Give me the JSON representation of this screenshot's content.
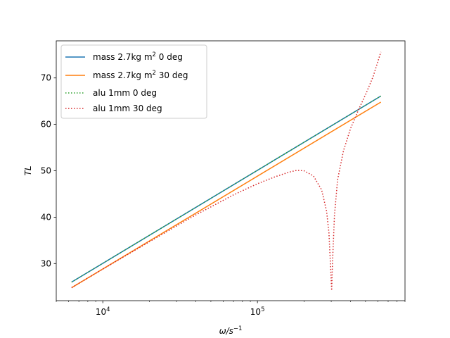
{
  "chart_data": {
    "type": "line",
    "title": "",
    "xlabel": {
      "base": "ω/s",
      "sup": "−1"
    },
    "ylabel": "TL",
    "x_scale": "log",
    "xlim": [
      5000,
      900000
    ],
    "ylim": [
      22,
      78
    ],
    "x_ticks": [
      {
        "value": 10000,
        "base": "10",
        "exp": "4"
      },
      {
        "value": 100000,
        "base": "10",
        "exp": "5"
      }
    ],
    "y_ticks": [
      30,
      40,
      50,
      60,
      70
    ],
    "grid": false,
    "legend_position": "top-left",
    "series": [
      {
        "name": {
          "pre": "mass 2.7kg m",
          "sup": "2",
          "post": " 0 deg"
        },
        "color": "#1f77b4",
        "style": "solid",
        "x": [
          6283,
          628300
        ],
        "y": [
          26.0,
          66.1
        ]
      },
      {
        "name": {
          "pre": "mass 2.7kg m",
          "sup": "2",
          "post": " 30 deg"
        },
        "color": "#ff7f0e",
        "style": "solid",
        "x": [
          6283,
          628300
        ],
        "y": [
          24.8,
          64.8
        ]
      },
      {
        "name": {
          "pre": "alu 1mm  0 deg",
          "sup": "",
          "post": ""
        },
        "color": "#2ca02c",
        "style": "dotted",
        "x": [
          6283,
          628300
        ],
        "y": [
          26.0,
          66.1
        ]
      },
      {
        "name": {
          "pre": "alu 1mm 30 deg",
          "sup": "",
          "post": ""
        },
        "color": "#d62728",
        "style": "dotted",
        "x": [
          6283,
          10000,
          20000,
          40000,
          70000,
          100000,
          130000,
          160000,
          180000,
          200000,
          230000,
          260000,
          280000,
          290000,
          298000,
          302000,
          306000,
          315000,
          330000,
          360000,
          400000,
          450000,
          500000,
          560000,
          628300
        ],
        "y": [
          24.8,
          28.8,
          34.7,
          40.5,
          44.8,
          47.2,
          48.7,
          49.7,
          50.1,
          50.0,
          48.9,
          45.9,
          41.3,
          36.6,
          28.5,
          24.2,
          30.5,
          40.5,
          48.1,
          54.3,
          59.1,
          63.1,
          66.4,
          70.3,
          75.6
        ]
      }
    ]
  }
}
